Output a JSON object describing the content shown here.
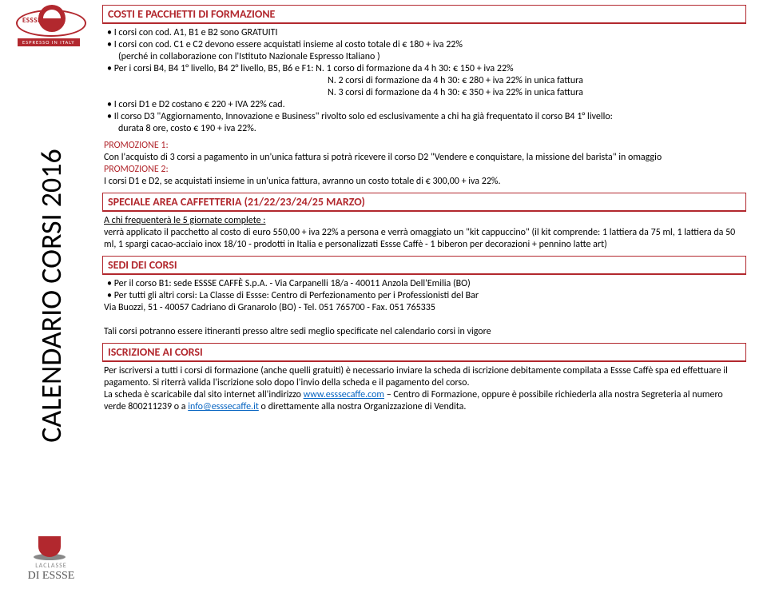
{
  "vertical_title": "CALENDARIO CORSI 2016",
  "logo_top": {
    "brand": "ESSSE",
    "sub": "ESPRESSO IN ITALY"
  },
  "logo_bottom": {
    "laclasse": "LACLASSE",
    "diesse": "DI ESSSE"
  },
  "section1": {
    "title": "COSTI E PACCHETTI DI FORMAZIONE"
  },
  "body1": {
    "l1": "• I corsi con cod. A1, B1 e B2 sono GRATUITI",
    "l2": "• I corsi con cod. C1 e C2 devono essere acquistati insieme al costo totale di € 180 + iva 22%",
    "l3": "(perché in collaborazione con l'Istituto Nazionale Espresso Italiano )",
    "l4": "• Per i corsi B4, B4 1° livello, B4 2° livello, B5, B6 e F1: N. 1 corso di formazione da 4 h 30: € 150 + iva 22%",
    "l5": "N. 2 corsi di formazione da 4 h 30: € 280 + iva 22% in unica fattura",
    "l6": "N. 3 corsi di formazione da 4 h 30: € 350 + iva 22% in unica fattura",
    "l7": "• I corsi D1 e D2 costano € 220 + IVA 22% cad.",
    "l8": "• Il corso D3 \"Aggiornamento, Innovazione e Business\" rivolto solo ed esclusivamente a chi ha già frequentato il corso B4 1° livello:",
    "l9": "durata 8 ore, costo € 190 + iva 22%."
  },
  "promo1_label": "PROMOZIONE 1:",
  "promo1_text": "Con l'acquisto di 3 corsi a pagamento in un'unica fattura si potrà ricevere il corso D2 \"Vendere e conquistare, la missione del barista\" in omaggio",
  "promo2_label": "PROMOZIONE 2:",
  "promo2_text": "I corsi D1 e D2, se acquistati insieme in un'unica fattura, avranno un costo totale di € 300,00 + iva 22%.",
  "section2": {
    "title": "SPECIALE AREA CAFFETTERIA (21/22/23/24/25 MARZO)"
  },
  "body2": {
    "l1": "A chi frequenterà le 5 giornate complete :",
    "l2": "verrà applicato il pacchetto al costo di euro 550,00 + iva 22% a persona e verrà omaggiato un \"kit cappuccino\" (il kit comprende: 1 lattiera da 75 ml, 1 lattiera da 50 ml, 1 spargi cacao-acciaio inox 18/10 - prodotti in Italia e personalizzati Essse Caffè  -  1 biberon per decorazioni + pennino latte art)"
  },
  "section3": {
    "title": "SEDI DEI CORSI"
  },
  "body3": {
    "l1": "• Per il corso B1: sede ESSSE CAFFÈ S.p.A. - Via Carpanelli 18/a - 40011 Anzola Dell'Emilia (BO)",
    "l2": "• Per tutti gli altri corsi: La Classe di Essse: Centro di Perfezionamento per i Professionisti del Bar",
    "l3": "Via Buozzi, 51 - 40057 Cadriano di Granarolo (BO) - Tel. 051 765700 - Fax. 051 765335",
    "l4": "Tali corsi potranno essere itineranti presso altre sedi meglio specificate nel calendario corsi in vigore"
  },
  "section4": {
    "title": "ISCRIZIONE AI CORSI"
  },
  "body4": {
    "p1": "Per iscriversi a tutti i corsi di formazione (anche quelli gratuiti) è necessario inviare la scheda di iscrizione debitamente compilata a Essse Caffè spa ed effettuare il pagamento. Si riterrà valida l'iscrizione solo dopo l'invio della scheda e il pagamento del corso.",
    "p2a": "La scheda è scaricabile dal sito internet all'indirizzo ",
    "link1": "www.esssecaffe.com",
    "p2b": " – Centro di Formazione, oppure è possibile richiederla alla nostra Segreteria al numero verde 800211239 o a ",
    "link2": "info@esssecaffe.it",
    "p2c": " o direttamente alla nostra Organizzazione di Vendita."
  },
  "colors": {
    "accent": "#b2282e",
    "link": "#0563c1",
    "text": "#000000",
    "bg": "#ffffff"
  }
}
